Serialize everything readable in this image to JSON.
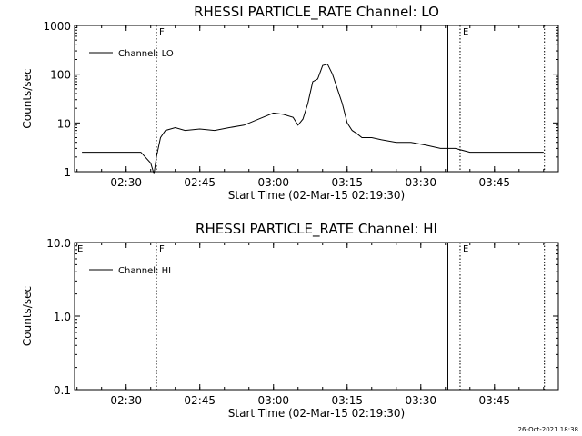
{
  "chart_data": [
    {
      "type": "line",
      "title": "RHESSI PARTICLE_RATE Channel: LO",
      "xlabel": "Start Time (02-Mar-15 02:19:30)",
      "ylabel": "Counts/sec",
      "y_scale": "log",
      "ylim": [
        1,
        1000
      ],
      "xlim": [
        "02:19:30",
        "03:58:00"
      ],
      "x_ticks": [
        "02:30",
        "02:45",
        "03:00",
        "03:15",
        "03:30",
        "03:45"
      ],
      "y_ticks": [
        "1",
        "10",
        "100",
        "1000"
      ],
      "legend": "Channel: LO",
      "legend_placement": "top-left",
      "grid": false,
      "markers": [
        {
          "label": "F",
          "time": "02:36:10",
          "style": "dotted"
        },
        {
          "label": "",
          "time": "03:35:30",
          "style": "solid"
        },
        {
          "label": "E",
          "time": "03:38:00",
          "style": "dotted"
        },
        {
          "label": "",
          "time": "03:55:10",
          "style": "dotted"
        }
      ],
      "series": [
        {
          "name": "Channel: LO",
          "x": [
            "02:21:00",
            "02:24:00",
            "02:27:00",
            "02:30:00",
            "02:33:00",
            "02:35:00",
            "02:35:40",
            "02:36:10",
            "02:37:00",
            "02:38:00",
            "02:40:00",
            "02:42:00",
            "02:45:00",
            "02:48:00",
            "02:51:00",
            "02:54:00",
            "02:57:00",
            "03:00:00",
            "03:02:00",
            "03:04:00",
            "03:05:00",
            "03:06:00",
            "03:07:00",
            "03:08:00",
            "03:09:00",
            "03:10:00",
            "03:11:00",
            "03:12:00",
            "03:13:00",
            "03:14:00",
            "03:15:00",
            "03:16:00",
            "03:17:00",
            "03:18:00",
            "03:20:00",
            "03:22:00",
            "03:25:00",
            "03:28:00",
            "03:31:00",
            "03:34:00",
            "03:37:00",
            "03:40:00",
            "03:43:00",
            "03:46:00",
            "03:49:00",
            "03:52:00",
            "03:55:00"
          ],
          "y": [
            2.5,
            2.5,
            2.5,
            2.5,
            2.5,
            1.5,
            0.9,
            2.0,
            5.0,
            7.0,
            8.0,
            7.0,
            7.5,
            7.0,
            8.0,
            9.0,
            12.0,
            16.0,
            15.0,
            13.0,
            9.0,
            12.0,
            25.0,
            70.0,
            80.0,
            150.0,
            160.0,
            100.0,
            50.0,
            25.0,
            10.0,
            7.0,
            6.0,
            5.0,
            5.0,
            4.5,
            4.0,
            4.0,
            3.5,
            3.0,
            3.0,
            2.5,
            2.5,
            2.5,
            2.5,
            2.5,
            2.5
          ]
        }
      ]
    },
    {
      "type": "line",
      "title": "RHESSI PARTICLE_RATE Channel: HI",
      "xlabel": "Start Time (02-Mar-15 02:19:30)",
      "ylabel": "Counts/sec",
      "y_scale": "log",
      "ylim": [
        0.1,
        10.0
      ],
      "xlim": [
        "02:19:30",
        "03:58:00"
      ],
      "x_ticks": [
        "02:30",
        "02:45",
        "03:00",
        "03:15",
        "03:30",
        "03:45"
      ],
      "y_ticks": [
        "0.1",
        "1.0",
        "10.0"
      ],
      "legend": "Channel: HI",
      "legend_placement": "top-left",
      "grid": false,
      "markers": [
        {
          "label": "E",
          "time": "02:19:30",
          "style": "none"
        },
        {
          "label": "F",
          "time": "02:36:10",
          "style": "dotted"
        },
        {
          "label": "",
          "time": "03:35:30",
          "style": "solid"
        },
        {
          "label": "E",
          "time": "03:38:00",
          "style": "dotted"
        },
        {
          "label": "",
          "time": "03:55:10",
          "style": "dotted"
        }
      ],
      "series": [
        {
          "name": "Channel: HI",
          "x": [],
          "y": []
        }
      ]
    }
  ],
  "footer": {
    "timestamp": "26-Oct-2021 18:38"
  }
}
